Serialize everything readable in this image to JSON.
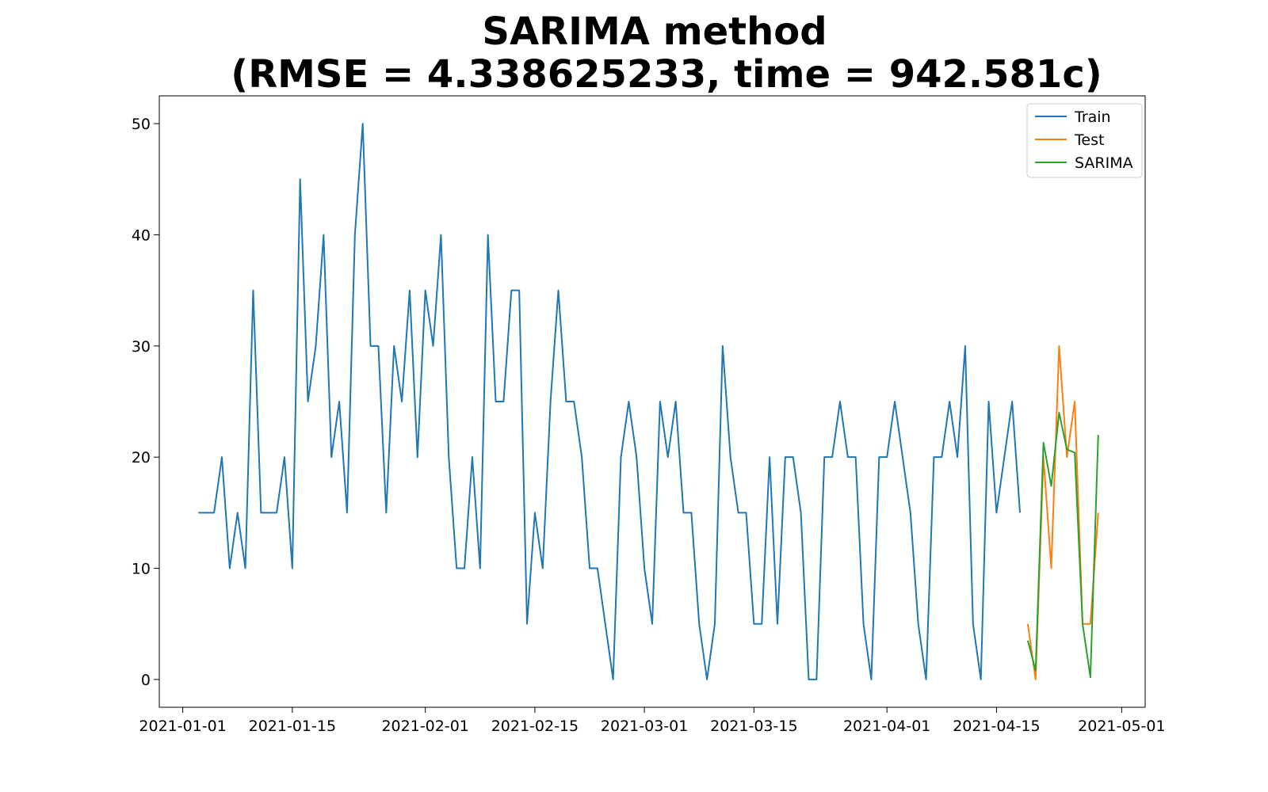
{
  "chart_data": {
    "type": "line",
    "title": "SARIMA method",
    "subtitle": "(RMSE = 4.338625233, time = 942.581c)",
    "xlabel": "",
    "ylabel": "",
    "x_start_date": "2021-01-03",
    "xlim": [
      "2020-12-29",
      "2021-05-04"
    ],
    "ylim": [
      -2.5,
      52.5
    ],
    "y_ticks": [
      0,
      10,
      20,
      30,
      40,
      50
    ],
    "x_ticks": [
      "2021-01-01",
      "2021-01-15",
      "2021-02-01",
      "2021-02-15",
      "2021-03-01",
      "2021-03-15",
      "2021-04-01",
      "2021-04-15",
      "2021-05-01"
    ],
    "grid": false,
    "legend_position": "top-right",
    "series": [
      {
        "name": "Train",
        "color": "#1f77b4",
        "start": "2021-01-03",
        "values": [
          15,
          15,
          15,
          20,
          10,
          15,
          10,
          35,
          15,
          15,
          15,
          20,
          10,
          45,
          25,
          30,
          40,
          20,
          25,
          15,
          40,
          50,
          30,
          30,
          15,
          30,
          25,
          35,
          20,
          35,
          30,
          40,
          20,
          10,
          10,
          20,
          10,
          40,
          25,
          25,
          35,
          35,
          5,
          15,
          10,
          25,
          35,
          25,
          25,
          20,
          10,
          10,
          5,
          0,
          20,
          25,
          20,
          10,
          5,
          25,
          20,
          25,
          15,
          15,
          5,
          0,
          5,
          30,
          20,
          15,
          15,
          5,
          5,
          20,
          5,
          20,
          20,
          15,
          0,
          0,
          20,
          20,
          25,
          20,
          20,
          5,
          0,
          20,
          20,
          25,
          20,
          15,
          5,
          0,
          20,
          20,
          25,
          20,
          30,
          5,
          0,
          25,
          15,
          20,
          25,
          15
        ]
      },
      {
        "name": "Test",
        "color": "#ff7f0e",
        "start": "2021-04-19",
        "values": [
          5,
          0,
          20,
          10,
          30,
          20,
          25,
          5,
          5,
          15
        ]
      },
      {
        "name": "SARIMA",
        "color": "#2ca02c",
        "start": "2021-04-19",
        "values": [
          3.5,
          0.8,
          21.3,
          17.4,
          24,
          20.7,
          20.4,
          5,
          0.2,
          22
        ]
      }
    ]
  }
}
